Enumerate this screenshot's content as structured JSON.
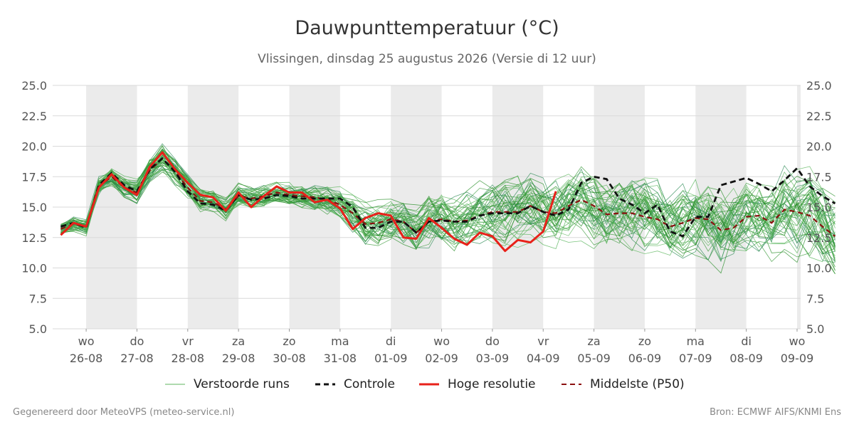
{
  "chart_data": {
    "type": "line",
    "title": "Dauwpunttemperatuur (°C)",
    "subtitle": "Vlissingen, dinsdag 25 augustus 2026 (Versie di 12 uur)",
    "ylim": [
      5.0,
      25.0
    ],
    "yticks": [
      "5.0",
      "7.5",
      "10.0",
      "12.5",
      "15.0",
      "17.5",
      "20.0",
      "22.5",
      "25.0"
    ],
    "x_start": "2026-08-25",
    "x_range": [
      0.34,
      15.07
    ],
    "x_ticks": [
      {
        "day": "wo",
        "date": "26-08"
      },
      {
        "day": "do",
        "date": "27-08"
      },
      {
        "day": "vr",
        "date": "28-08"
      },
      {
        "day": "za",
        "date": "29-08"
      },
      {
        "day": "zo",
        "date": "30-08"
      },
      {
        "day": "ma",
        "date": "31-08"
      },
      {
        "day": "di",
        "date": "01-09"
      },
      {
        "day": "wo",
        "date": "02-09"
      },
      {
        "day": "do",
        "date": "03-09"
      },
      {
        "day": "vr",
        "date": "04-09"
      },
      {
        "day": "za",
        "date": "05-09"
      },
      {
        "day": "zo",
        "date": "06-09"
      },
      {
        "day": "ma",
        "date": "07-09"
      },
      {
        "day": "di",
        "date": "08-09"
      },
      {
        "day": "wo",
        "date": "09-09"
      }
    ],
    "grid": true,
    "legend_position": "bottom",
    "x_step_days": 0.25,
    "series": [
      {
        "name": "Controle",
        "style": "dashed",
        "color": "#111111",
        "values": [
          13.4,
          13.7,
          13.3,
          16.8,
          17.8,
          16.8,
          16.3,
          18.1,
          19.0,
          17.9,
          16.3,
          15.3,
          15.2,
          14.7,
          16.0,
          15.6,
          15.7,
          16.0,
          15.9,
          15.7,
          15.7,
          15.7,
          15.7,
          15.0,
          13.3,
          13.3,
          13.8,
          13.8,
          12.9,
          13.8,
          13.9,
          13.8,
          13.8,
          14.3,
          14.5,
          14.5,
          14.5,
          15.1,
          14.6,
          14.3,
          14.8,
          17.0,
          17.5,
          17.3,
          15.7,
          15.2,
          14.5,
          15.2,
          13.0,
          12.6,
          14.2,
          14.2,
          16.8,
          17.1,
          17.4,
          16.9,
          16.3,
          17.2,
          18.2,
          16.7,
          15.9,
          15.3
        ]
      },
      {
        "name": "Hoge resolutie",
        "style": "solid",
        "color": "#e8211a",
        "values": [
          12.7,
          13.7,
          13.4,
          16.6,
          17.7,
          16.6,
          16.0,
          18.3,
          19.5,
          18.1,
          17.0,
          16.0,
          15.8,
          14.7,
          16.2,
          15.0,
          15.9,
          16.7,
          16.2,
          16.2,
          15.4,
          15.6,
          14.9,
          13.2,
          14.1,
          14.5,
          14.3,
          12.5,
          12.4,
          14.1,
          13.3,
          12.4,
          11.9,
          12.9,
          12.6,
          11.4,
          12.3,
          12.1,
          13.0,
          16.3
        ]
      },
      {
        "name": "Middelste (P50)",
        "style": "dashed",
        "color": "#8b1010",
        "values": [
          13.2,
          13.6,
          13.4,
          16.7,
          17.5,
          16.6,
          16.2,
          18.0,
          19.0,
          17.9,
          16.6,
          15.5,
          15.4,
          14.8,
          15.9,
          15.7,
          15.9,
          16.2,
          16.0,
          15.9,
          15.8,
          15.6,
          15.2,
          14.5,
          13.6,
          13.7,
          14.0,
          13.8,
          12.9,
          13.8,
          14.0,
          13.8,
          13.9,
          14.3,
          14.6,
          14.6,
          14.6,
          15.1,
          14.6,
          14.5,
          15.1,
          15.6,
          15.1,
          14.4,
          14.5,
          14.5,
          14.2,
          14.0,
          13.4,
          13.7,
          14.1,
          14.0,
          13.1,
          13.3,
          14.2,
          14.3,
          13.7,
          14.8,
          14.6,
          14.3,
          13.4,
          12.6
        ]
      }
    ],
    "ensemble": {
      "name": "Verstoorde runs",
      "color": "#3a9a3a",
      "count": 50,
      "spread": [
        0.5,
        0.6,
        0.6,
        0.7,
        0.8,
        0.8,
        0.8,
        0.9,
        1.0,
        1.0,
        0.9,
        0.9,
        0.8,
        0.8,
        0.8,
        0.8,
        0.8,
        0.8,
        0.8,
        0.9,
        1.0,
        1.1,
        1.2,
        1.4,
        1.6,
        1.7,
        1.7,
        1.8,
        1.9,
        1.9,
        2.0,
        2.0,
        2.1,
        2.1,
        2.2,
        2.2,
        2.2,
        2.3,
        2.3,
        2.4,
        2.4,
        2.5,
        2.5,
        2.6,
        2.6,
        2.6,
        2.7,
        2.7,
        2.7,
        2.8,
        2.8,
        2.8,
        2.9,
        2.9,
        2.9,
        3.0,
        3.0,
        3.0,
        3.0,
        3.0,
        3.1,
        3.1
      ]
    }
  },
  "legend": {
    "ensemble_label": "Verstoorde runs",
    "control_label": "Controle",
    "hires_label": "Hoge resolutie",
    "median_label": "Middelste (P50)"
  },
  "footer": {
    "left": "Gegenereerd door MeteoVPS (meteo-service.nl)",
    "right": "Bron: ECMWF AIFS/KNMI Ens"
  },
  "colors": {
    "weekend_band": "#ebebeb",
    "grid": "#d9d9d9"
  }
}
